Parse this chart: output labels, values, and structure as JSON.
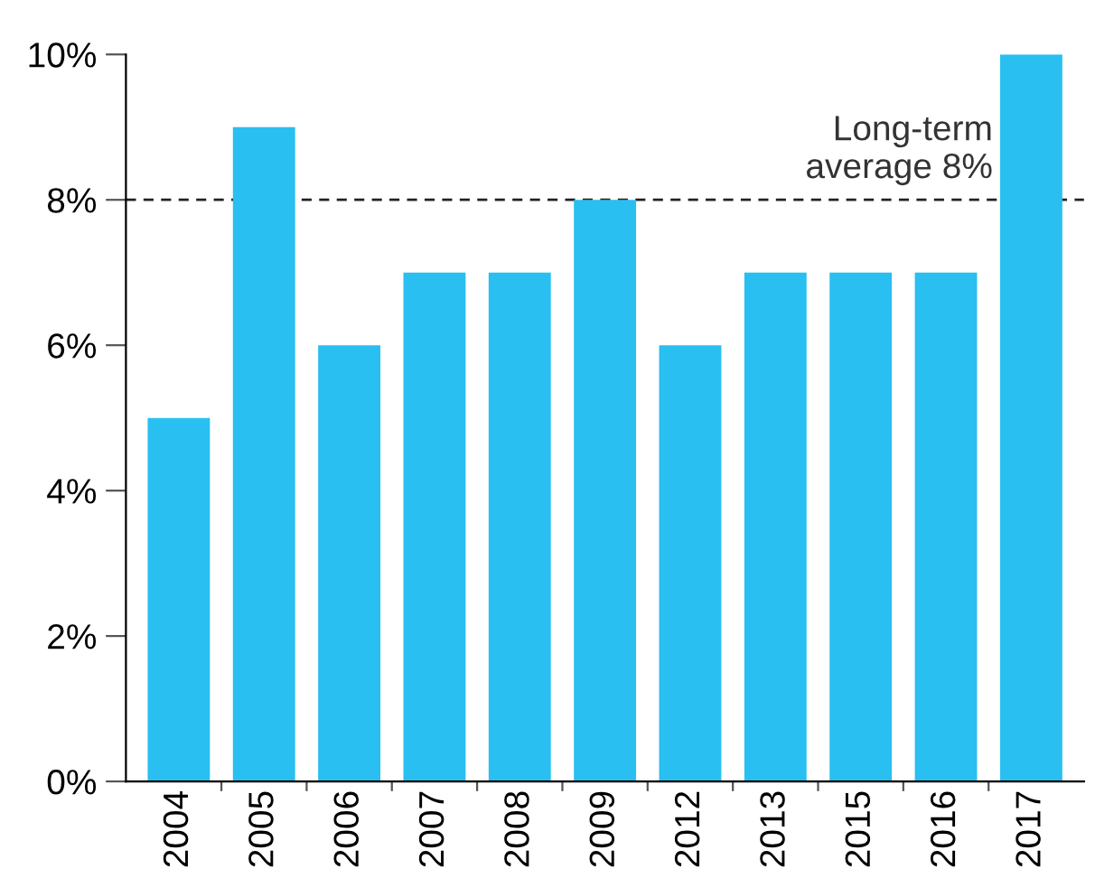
{
  "chart_data": {
    "type": "bar",
    "categories": [
      "2004",
      "2005",
      "2006",
      "2007",
      "2008",
      "2009",
      "2012",
      "2013",
      "2015",
      "2016",
      "2017"
    ],
    "values": [
      5,
      9,
      6,
      7,
      7,
      8,
      6,
      7,
      7,
      7,
      10
    ],
    "color": "#29bff0",
    "ylim": [
      0,
      10
    ],
    "yticks": [
      {
        "value": 0,
        "label": "0%"
      },
      {
        "value": 2,
        "label": "2%"
      },
      {
        "value": 4,
        "label": "4%"
      },
      {
        "value": 6,
        "label": "6%"
      },
      {
        "value": 8,
        "label": "8%"
      },
      {
        "value": 10,
        "label": "10%"
      }
    ],
    "ref_lines": [
      {
        "axis": "y",
        "value": 8,
        "label": "Long-term\naverage 8%",
        "color": "#222222",
        "line_style": "dashed"
      }
    ],
    "grid": false
  }
}
